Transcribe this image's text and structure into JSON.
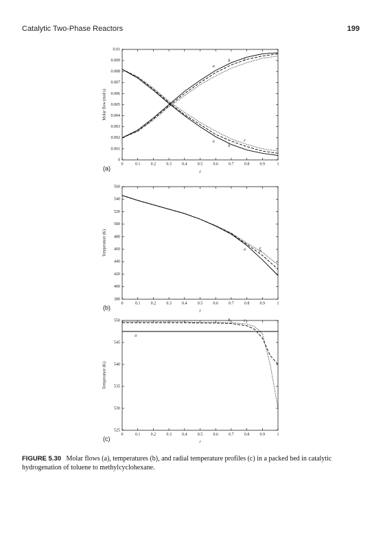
{
  "header": {
    "title": "Catalytic Two-Phase Reactors",
    "page_number": "199"
  },
  "chart_data": [
    {
      "type": "line",
      "panel_label": "(a)",
      "y_label": "Molar flow (mol/s)",
      "x_label": "z",
      "x": [
        0,
        0.1,
        0.2,
        0.3,
        0.4,
        0.5,
        0.6,
        0.7,
        0.8,
        0.9,
        1
      ],
      "xlim": [
        0,
        1
      ],
      "xticks": [
        0,
        0.1,
        0.2,
        0.3,
        0.4,
        0.5,
        0.6,
        0.7,
        0.8,
        0.9,
        1
      ],
      "ylim": [
        0,
        0.01
      ],
      "yticks": [
        0,
        0.001,
        0.002,
        0.003,
        0.004,
        0.005,
        0.006,
        0.007,
        0.008,
        0.009,
        0.01
      ],
      "series": [
        {
          "name": "a",
          "color": "#000000",
          "style": "solid",
          "values": [
            0.002,
            0.0027,
            0.0038,
            0.005,
            0.0062,
            0.0072,
            0.0081,
            0.0088,
            0.0093,
            0.0096,
            0.0097
          ]
        },
        {
          "name": "b",
          "color": "#000000",
          "style": "dashed",
          "values": [
            0.002,
            0.0026,
            0.0037,
            0.0049,
            0.006,
            0.007,
            0.0079,
            0.0086,
            0.0091,
            0.0094,
            0.0096
          ]
        },
        {
          "name": "c",
          "color": "#000000",
          "style": "dotted",
          "values": [
            0.002,
            0.0026,
            0.0036,
            0.0048,
            0.0058,
            0.0068,
            0.0076,
            0.0083,
            0.0088,
            0.0092,
            0.0094
          ]
        },
        {
          "name": "a",
          "color": "#000000",
          "style": "solid",
          "values": [
            0.0082,
            0.0074,
            0.0063,
            0.0051,
            0.004,
            0.003,
            0.0021,
            0.0014,
            0.0009,
            0.0006,
            0.0004
          ]
        },
        {
          "name": "b",
          "color": "#000000",
          "style": "dashed",
          "values": [
            0.0082,
            0.0075,
            0.0064,
            0.0052,
            0.0041,
            0.0032,
            0.0023,
            0.0017,
            0.0012,
            0.0008,
            0.0006
          ]
        },
        {
          "name": "c",
          "color": "#000000",
          "style": "dotted",
          "values": [
            0.0082,
            0.0075,
            0.0065,
            0.0053,
            0.0043,
            0.0034,
            0.0026,
            0.0019,
            0.0014,
            0.001,
            0.0008
          ]
        }
      ]
    },
    {
      "type": "line",
      "panel_label": "(b)",
      "y_label": "Temperature (K)",
      "x_label": "z",
      "x": [
        0,
        0.1,
        0.2,
        0.3,
        0.4,
        0.5,
        0.6,
        0.7,
        0.8,
        0.9,
        1
      ],
      "xlim": [
        0,
        1
      ],
      "xticks": [
        0,
        0.1,
        0.2,
        0.3,
        0.4,
        0.5,
        0.6,
        0.7,
        0.8,
        0.9,
        1
      ],
      "ylim": [
        380,
        560
      ],
      "yticks": [
        380,
        400,
        420,
        440,
        460,
        480,
        500,
        520,
        540,
        560
      ],
      "series": [
        {
          "name": "a",
          "color": "#000000",
          "style": "solid",
          "values": [
            546,
            538,
            531,
            524,
            517,
            508,
            497,
            484,
            466,
            443,
            418
          ]
        },
        {
          "name": "b",
          "color": "#000000",
          "style": "dashed",
          "values": [
            546,
            538,
            531,
            524,
            517,
            508,
            497,
            485,
            468,
            450,
            428
          ]
        },
        {
          "name": "c",
          "color": "#000000",
          "style": "dotted",
          "values": [
            546,
            538,
            531,
            524,
            517,
            508,
            498,
            486,
            470,
            455,
            435
          ]
        }
      ]
    },
    {
      "type": "line",
      "panel_label": "(c)",
      "y_label": "Temperature (K)",
      "x_label": "r",
      "x": [
        0,
        0.1,
        0.2,
        0.3,
        0.4,
        0.5,
        0.6,
        0.7,
        0.8,
        0.85,
        0.9,
        0.95,
        1
      ],
      "xlim": [
        0,
        1
      ],
      "xticks": [
        0,
        0.1,
        0.2,
        0.3,
        0.4,
        0.5,
        0.6,
        0.7,
        0.8,
        0.9,
        1
      ],
      "ylim": [
        525,
        550
      ],
      "yticks": [
        525,
        530,
        535,
        540,
        545,
        550
      ],
      "series": [
        {
          "name": "a",
          "color": "#000000",
          "style": "solid",
          "values": [
            547.5,
            547.5,
            547.5,
            547.5,
            547.5,
            547.5,
            547.5,
            547.5,
            547.5,
            547.5,
            547.5,
            547.5,
            547.5
          ]
        },
        {
          "name": "b",
          "color": "#000000",
          "style": "dashed",
          "values": [
            549.5,
            549.5,
            549.5,
            549.5,
            549.5,
            549.4,
            549.4,
            549.3,
            548.8,
            548,
            546,
            542,
            540
          ]
        },
        {
          "name": "c",
          "color": "#000000",
          "style": "dotted",
          "values": [
            549.7,
            549.7,
            549.7,
            549.7,
            549.7,
            549.6,
            549.6,
            549.5,
            549.2,
            548.6,
            547,
            540,
            530
          ]
        }
      ]
    }
  ],
  "caption": {
    "label": "FIGURE 5.30",
    "text": "Molar flows (a), temperatures (b), and radial temperature profiles (c) in a packed bed in catalytic hydrogenation of toluene to methylcyclohexane."
  }
}
